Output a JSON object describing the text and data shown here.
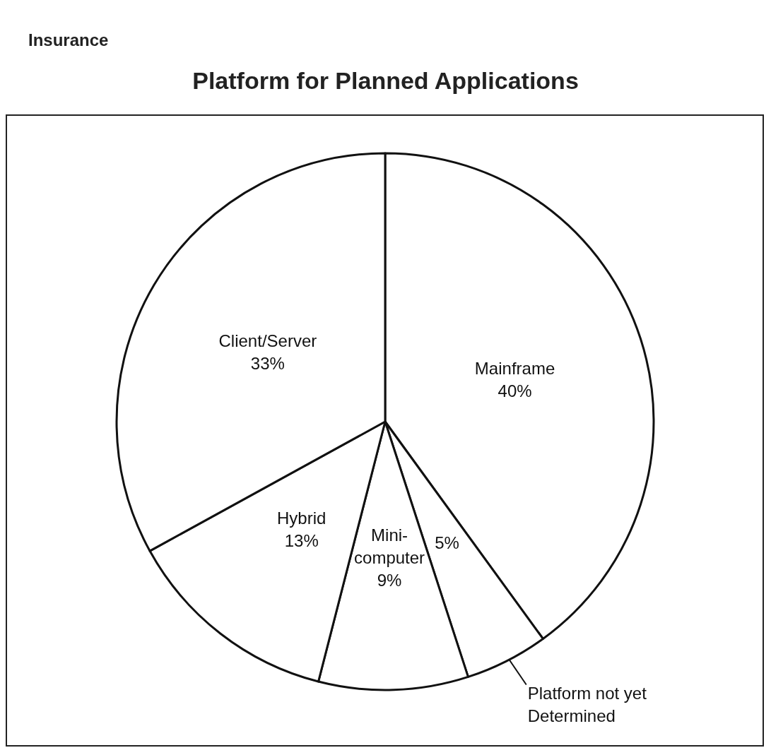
{
  "chart_data": {
    "type": "pie",
    "subtitle": "Insurance",
    "title": "Platform for Planned Applications",
    "categories": [
      "Mainframe",
      "Platform not yet Determined",
      "Mini-computer",
      "Hybrid",
      "Client/Server"
    ],
    "values": [
      40,
      5,
      9,
      13,
      33
    ],
    "colors": [
      "#ffffff",
      "#ffffff",
      "#ffffff",
      "#ffffff",
      "#ffffff"
    ],
    "value_labels": [
      "40%",
      "5%",
      "9%",
      "13%",
      "33%"
    ]
  }
}
